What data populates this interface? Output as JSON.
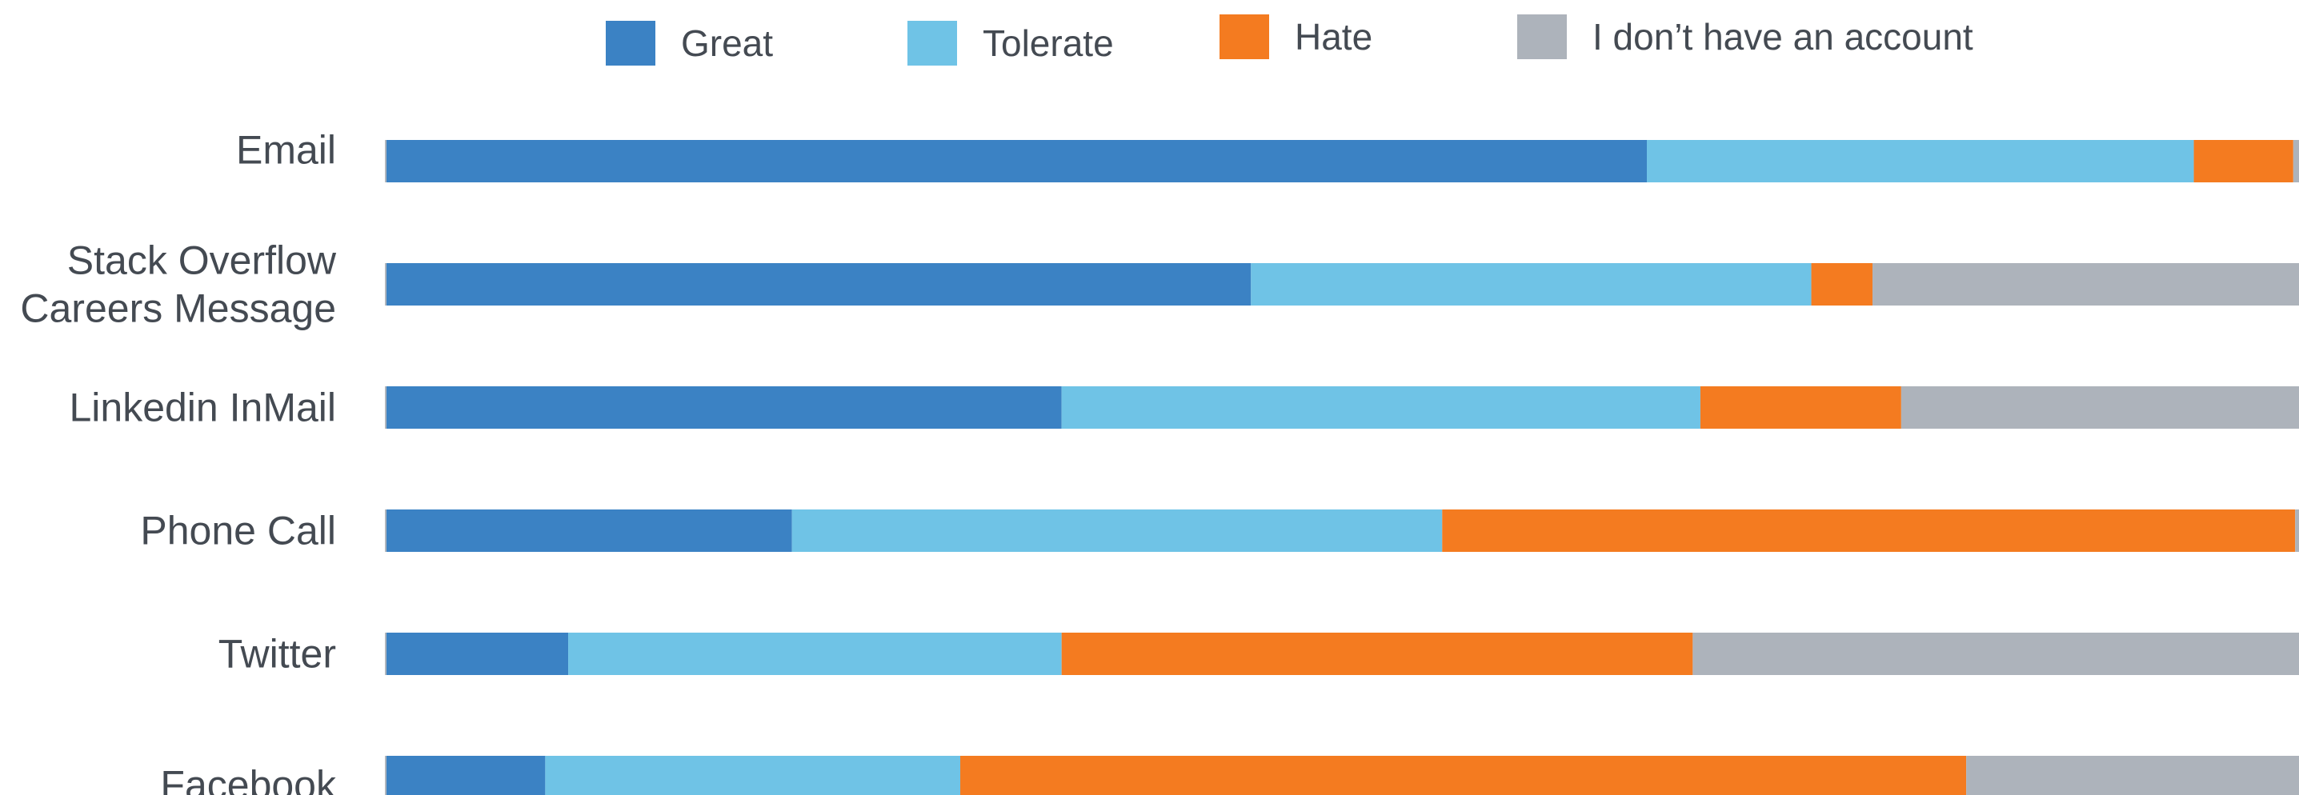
{
  "chart_data": {
    "type": "bar",
    "orientation": "horizontal",
    "stacked": true,
    "normalized": true,
    "title": "",
    "xlabel": "",
    "ylabel": "",
    "xlim": [
      0,
      100
    ],
    "grid": false,
    "legend_position": "top",
    "categories": [
      "Email",
      "Stack Overflow Careers Message",
      "Linkedin InMail",
      "Phone Call",
      "Twitter",
      "Facebook"
    ],
    "category_lines": [
      [
        "Email"
      ],
      [
        "Stack Overflow",
        "Careers Message"
      ],
      [
        "Linkedin InMail"
      ],
      [
        "Phone Call"
      ],
      [
        "Twitter"
      ],
      [
        "Facebook"
      ]
    ],
    "series": [
      {
        "name": "Great",
        "color": "#3b82c4",
        "values": [
          65.9,
          45.2,
          35.3,
          21.2,
          9.5,
          8.3
        ]
      },
      {
        "name": "Tolerate",
        "color": "#6fc3e6",
        "values": [
          28.6,
          29.3,
          33.4,
          34.0,
          25.8,
          21.7
        ]
      },
      {
        "name": "Hate",
        "color": "#f47b20",
        "values": [
          5.2,
          3.2,
          10.5,
          44.6,
          33.0,
          52.6
        ]
      },
      {
        "name": "I don’t have an account",
        "color": "#adb3bb",
        "values": [
          0.3,
          22.3,
          20.8,
          0.2,
          31.7,
          17.4
        ]
      }
    ]
  }
}
